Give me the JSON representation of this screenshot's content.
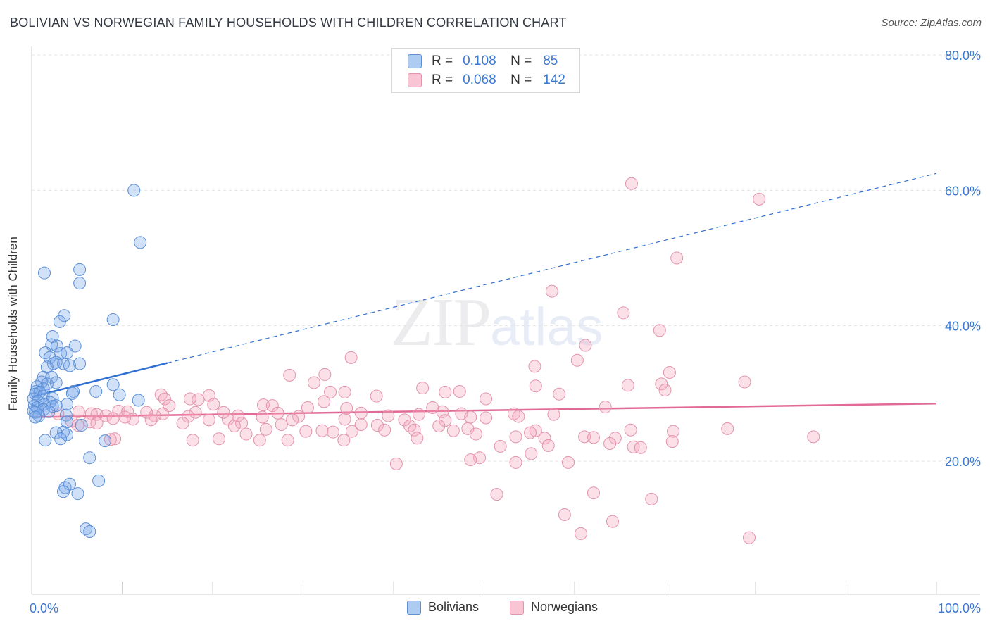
{
  "title": "BOLIVIAN VS NORWEGIAN FAMILY HOUSEHOLDS WITH CHILDREN CORRELATION CHART",
  "source": "Source: ZipAtlas.com",
  "watermark": {
    "zip": "ZIP",
    "atlas": "atlas"
  },
  "legend": {
    "r_label": "R =",
    "n_label": "N =",
    "rows": [
      {
        "name": "Bolivians",
        "r": "0.108",
        "n": "85",
        "fill": "#aecbf2",
        "stroke": "#5b8fd6"
      },
      {
        "name": "Norwegians",
        "r": "0.068",
        "n": "142",
        "fill": "#f9c4d4",
        "stroke": "#e393ad"
      }
    ]
  },
  "chart_data": {
    "type": "scatter",
    "title": "BOLIVIAN VS NORWEGIAN FAMILY HOUSEHOLDS WITH CHILDREN CORRELATION CHART",
    "xlabel": "",
    "ylabel": "Family Households with Children",
    "xlim": [
      0,
      100
    ],
    "ylim": [
      0,
      82
    ],
    "x_tick_labels": [
      "0.0%",
      "100.0%"
    ],
    "y_ticks": [
      20,
      40,
      60,
      80
    ],
    "y_tick_labels": [
      "20.0%",
      "40.0%",
      "60.0%",
      "80.0%"
    ],
    "grid": true,
    "colors": {
      "bolivians_fill": "rgba(122,170,235,0.35)",
      "bolivians_stroke": "#5b8fd6",
      "bolivians_line": "#2f6fd1",
      "norwegians_fill": "rgba(245,165,190,0.35)",
      "norwegians_stroke": "#e393ad",
      "norwegians_line": "#e26a96",
      "axis_text": "#3b78d0"
    },
    "series": [
      {
        "name": "Bolivians",
        "trend": {
          "x0": 0,
          "y0": 29.5,
          "x1": 15,
          "y1": 34.5,
          "dashed_to_x": 100,
          "dashed_to_y": 62.5
        },
        "points": [
          [
            11.3,
            60
          ],
          [
            12,
            52.3
          ],
          [
            1.4,
            47.8
          ],
          [
            5.3,
            48.3
          ],
          [
            5.3,
            46.3
          ],
          [
            3.6,
            41.5
          ],
          [
            9,
            40.9
          ],
          [
            3.1,
            40.6
          ],
          [
            2.3,
            38.4
          ],
          [
            2.2,
            37.2
          ],
          [
            4.8,
            37
          ],
          [
            2.8,
            37
          ],
          [
            1.5,
            36
          ],
          [
            3.2,
            35.9
          ],
          [
            3.9,
            36
          ],
          [
            2,
            35.3
          ],
          [
            2.4,
            34.4
          ],
          [
            5.3,
            34.4
          ],
          [
            3.5,
            34.4
          ],
          [
            4.2,
            34.1
          ],
          [
            2.7,
            34.6
          ],
          [
            1.7,
            33.9
          ],
          [
            1.3,
            32.4
          ],
          [
            2.2,
            32.4
          ],
          [
            1.1,
            31.7
          ],
          [
            2.7,
            31.6
          ],
          [
            1.7,
            31.4
          ],
          [
            0.6,
            31
          ],
          [
            1.3,
            30.7
          ],
          [
            9,
            31.3
          ],
          [
            0.5,
            30.3
          ],
          [
            0.9,
            30.2
          ],
          [
            0.4,
            29.9
          ],
          [
            1.3,
            29.6
          ],
          [
            2.3,
            29.3
          ],
          [
            7.1,
            30.3
          ],
          [
            4.6,
            30.3
          ],
          [
            4.5,
            30
          ],
          [
            0.2,
            29.2
          ],
          [
            9.7,
            29.8
          ],
          [
            11.8,
            29
          ],
          [
            0.7,
            28.8
          ],
          [
            2,
            28.7
          ],
          [
            3.9,
            28.4
          ],
          [
            0.3,
            28.2
          ],
          [
            1.4,
            28.4
          ],
          [
            2.3,
            28.1
          ],
          [
            2.7,
            28.2
          ],
          [
            0.6,
            27.9
          ],
          [
            1.3,
            27.6
          ],
          [
            0.2,
            27.4
          ],
          [
            1.9,
            27.3
          ],
          [
            0.4,
            27.2
          ],
          [
            3.8,
            26.8
          ],
          [
            0.8,
            26.7
          ],
          [
            0.4,
            26.5
          ],
          [
            3.9,
            25.8
          ],
          [
            5.5,
            25.3
          ],
          [
            3.5,
            24.3
          ],
          [
            2.7,
            24.2
          ],
          [
            3.9,
            23.9
          ],
          [
            1.5,
            23.1
          ],
          [
            3.2,
            23.3
          ],
          [
            8.1,
            23
          ],
          [
            6.4,
            20.5
          ],
          [
            7.4,
            17.1
          ],
          [
            4.2,
            16.6
          ],
          [
            3.7,
            16.1
          ],
          [
            3.5,
            15.5
          ],
          [
            5.1,
            15.2
          ],
          [
            6,
            10
          ],
          [
            6.4,
            9.6
          ]
        ]
      },
      {
        "name": "Norwegians",
        "trend": {
          "x0": 0,
          "y0": 26.5,
          "x1": 100,
          "y1": 28.5
        },
        "points": [
          [
            66.3,
            61
          ],
          [
            80.4,
            58.7
          ],
          [
            71.3,
            50
          ],
          [
            57.5,
            45.1
          ],
          [
            65.4,
            41.9
          ],
          [
            69.4,
            39.3
          ],
          [
            61.2,
            37.1
          ],
          [
            35.3,
            35.3
          ],
          [
            60.3,
            34.9
          ],
          [
            55.6,
            34
          ],
          [
            70.5,
            33.1
          ],
          [
            28.5,
            32.7
          ],
          [
            32.4,
            32.8
          ],
          [
            31.2,
            31.6
          ],
          [
            78.8,
            31.7
          ],
          [
            65.9,
            31.2
          ],
          [
            69.6,
            31.4
          ],
          [
            43.2,
            30.8
          ],
          [
            55.7,
            31.1
          ],
          [
            70,
            30.5
          ],
          [
            33,
            30.2
          ],
          [
            34.6,
            30.2
          ],
          [
            47.3,
            30.3
          ],
          [
            45.7,
            30.2
          ],
          [
            58.3,
            29.9
          ],
          [
            14.3,
            29.8
          ],
          [
            19.6,
            29.7
          ],
          [
            38.1,
            29.6
          ],
          [
            50.2,
            29.2
          ],
          [
            14.7,
            29.2
          ],
          [
            18.4,
            29.1
          ],
          [
            17.5,
            29.2
          ],
          [
            32.3,
            28.8
          ],
          [
            15.2,
            28.2
          ],
          [
            20.1,
            28.4
          ],
          [
            25.6,
            28.3
          ],
          [
            26.6,
            28.2
          ],
          [
            30.5,
            27.9
          ],
          [
            34.8,
            27.8
          ],
          [
            44.3,
            27.9
          ],
          [
            63.4,
            28
          ],
          [
            9.6,
            27.4
          ],
          [
            12.7,
            27.2
          ],
          [
            10.6,
            27.3
          ],
          [
            5.2,
            27.3
          ],
          [
            6.6,
            27
          ],
          [
            2.9,
            27
          ],
          [
            7.2,
            26.9
          ],
          [
            14.5,
            27
          ],
          [
            18.1,
            27.2
          ],
          [
            21.2,
            27.2
          ],
          [
            27.2,
            27.1
          ],
          [
            36.4,
            27.1
          ],
          [
            45.4,
            27.3
          ],
          [
            47.5,
            27
          ],
          [
            53.3,
            27
          ],
          [
            57.7,
            26.9
          ],
          [
            8.2,
            26.7
          ],
          [
            10.3,
            26.5
          ],
          [
            13.6,
            26.7
          ],
          [
            17.3,
            26.6
          ],
          [
            22.8,
            26.7
          ],
          [
            25.5,
            26.5
          ],
          [
            29.5,
            26.6
          ],
          [
            39.4,
            26.7
          ],
          [
            42.8,
            26.9
          ],
          [
            48.5,
            26.5
          ],
          [
            50.2,
            26.4
          ],
          [
            53.8,
            26.6
          ],
          [
            9,
            26.3
          ],
          [
            11.2,
            26.2
          ],
          [
            13.2,
            26.1
          ],
          [
            19.6,
            26.1
          ],
          [
            21.7,
            26.2
          ],
          [
            28.8,
            26.1
          ],
          [
            34.6,
            26.2
          ],
          [
            41.2,
            26.1
          ],
          [
            45.7,
            26
          ],
          [
            4.4,
            25.9
          ],
          [
            6.4,
            25.8
          ],
          [
            7.2,
            25.6
          ],
          [
            16.7,
            25.6
          ],
          [
            23.2,
            25.6
          ],
          [
            27.6,
            25.4
          ],
          [
            36.4,
            25.4
          ],
          [
            38.2,
            25.3
          ],
          [
            41.8,
            25.2
          ],
          [
            45,
            25.2
          ],
          [
            5.1,
            25.3
          ],
          [
            22.4,
            25.2
          ],
          [
            25.9,
            24.7
          ],
          [
            32.1,
            24.5
          ],
          [
            35.4,
            24.4
          ],
          [
            39,
            24.6
          ],
          [
            42.3,
            24.6
          ],
          [
            46.6,
            24.5
          ],
          [
            48.2,
            24.8
          ],
          [
            55.7,
            24.5
          ],
          [
            66.2,
            24.6
          ],
          [
            70.9,
            24.4
          ],
          [
            76.9,
            24.8
          ],
          [
            30.3,
            24.4
          ],
          [
            33.3,
            24.3
          ],
          [
            55.1,
            24.2
          ],
          [
            23.7,
            24
          ],
          [
            49.1,
            24
          ],
          [
            53.5,
            23.6
          ],
          [
            56.7,
            23.4
          ],
          [
            61.1,
            23.6
          ],
          [
            62.1,
            23.5
          ],
          [
            64.5,
            23.4
          ],
          [
            86.4,
            23.6
          ],
          [
            20.7,
            23.3
          ],
          [
            42.6,
            23.4
          ],
          [
            34.5,
            23.1
          ],
          [
            17.8,
            23.1
          ],
          [
            25.2,
            23.1
          ],
          [
            28.3,
            23.1
          ],
          [
            9.2,
            23.3
          ],
          [
            8.7,
            23.2
          ],
          [
            63.9,
            22.6
          ],
          [
            70.8,
            22.9
          ],
          [
            57.1,
            22.3
          ],
          [
            51.8,
            22.2
          ],
          [
            66.5,
            22.1
          ],
          [
            67.3,
            22
          ],
          [
            55.2,
            21.1
          ],
          [
            49.5,
            20.5
          ],
          [
            48.5,
            20.2
          ],
          [
            59.3,
            19.8
          ],
          [
            53.5,
            19.8
          ],
          [
            40.3,
            19.6
          ],
          [
            51.4,
            15.1
          ],
          [
            62.1,
            15.3
          ],
          [
            68.5,
            14.4
          ],
          [
            58.9,
            12.1
          ],
          [
            64.2,
            11.1
          ],
          [
            60.7,
            9.3
          ],
          [
            79.3,
            8.7
          ]
        ]
      }
    ]
  }
}
